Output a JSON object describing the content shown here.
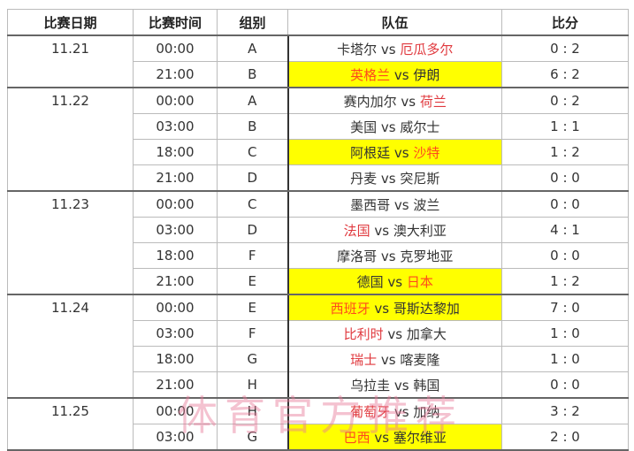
{
  "headers": [
    "比赛日期",
    "比赛时间",
    "组别",
    "队伍",
    "比分"
  ],
  "vs": "vs",
  "colors": {
    "highlight": "#ffff00",
    "winner": "#e0393e"
  },
  "days": [
    {
      "date": "11.21",
      "matches": [
        {
          "time": "00:00",
          "group": "A",
          "team1": "卡塔尔",
          "team2": "厄瓜多尔",
          "score": "0 : 2",
          "winner": 2,
          "highlight": false
        },
        {
          "time": "21:00",
          "group": "B",
          "team1": "英格兰",
          "team2": "伊朗",
          "score": "6 : 2",
          "winner": 1,
          "highlight": true
        }
      ]
    },
    {
      "date": "11.22",
      "matches": [
        {
          "time": "00:00",
          "group": "A",
          "team1": "赛内加尔",
          "team2": "荷兰",
          "score": "0 : 2",
          "winner": 2,
          "highlight": false
        },
        {
          "time": "03:00",
          "group": "B",
          "team1": "美国",
          "team2": "威尔士",
          "score": "1 : 1",
          "winner": 0,
          "highlight": false
        },
        {
          "time": "18:00",
          "group": "C",
          "team1": "阿根廷",
          "team2": "沙特",
          "score": "1 : 2",
          "winner": 2,
          "highlight": true
        },
        {
          "time": "21:00",
          "group": "D",
          "team1": "丹麦",
          "team2": "突尼斯",
          "score": "0 : 0",
          "winner": 0,
          "highlight": false
        }
      ]
    },
    {
      "date": "11.23",
      "matches": [
        {
          "time": "00:00",
          "group": "C",
          "team1": "墨西哥",
          "team2": "波兰",
          "score": "0 : 0",
          "winner": 0,
          "highlight": false
        },
        {
          "time": "03:00",
          "group": "D",
          "team1": "法国",
          "team2": "澳大利亚",
          "score": "4 : 1",
          "winner": 1,
          "highlight": false
        },
        {
          "time": "18:00",
          "group": "F",
          "team1": "摩洛哥",
          "team2": "克罗地亚",
          "score": "0 : 0",
          "winner": 0,
          "highlight": false
        },
        {
          "time": "21:00",
          "group": "E",
          "team1": "德国",
          "team2": "日本",
          "score": "1 : 2",
          "winner": 2,
          "highlight": true
        }
      ]
    },
    {
      "date": "11.24",
      "matches": [
        {
          "time": "00:00",
          "group": "E",
          "team1": "西班牙",
          "team2": "哥斯达黎加",
          "score": "7 : 0",
          "winner": 1,
          "highlight": true
        },
        {
          "time": "03:00",
          "group": "F",
          "team1": "比利时",
          "team2": "加拿大",
          "score": "1 : 0",
          "winner": 1,
          "highlight": false
        },
        {
          "time": "18:00",
          "group": "G",
          "team1": "瑞士",
          "team2": "喀麦隆",
          "score": "1 : 0",
          "winner": 1,
          "highlight": false
        },
        {
          "time": "21:00",
          "group": "H",
          "team1": "乌拉圭",
          "team2": "韩国",
          "score": "0 : 0",
          "winner": 0,
          "highlight": false
        }
      ]
    },
    {
      "date": "11.25",
      "matches": [
        {
          "time": "00:00",
          "group": "H",
          "team1": "葡萄牙",
          "team2": "加纳",
          "score": "3 : 2",
          "winner": 1,
          "highlight": false
        },
        {
          "time": "03:00",
          "group": "G",
          "team1": "巴西",
          "team2": "塞尔维亚",
          "score": "2 : 0",
          "winner": 1,
          "highlight": true
        }
      ]
    }
  ],
  "watermark": "体育官方推荐"
}
